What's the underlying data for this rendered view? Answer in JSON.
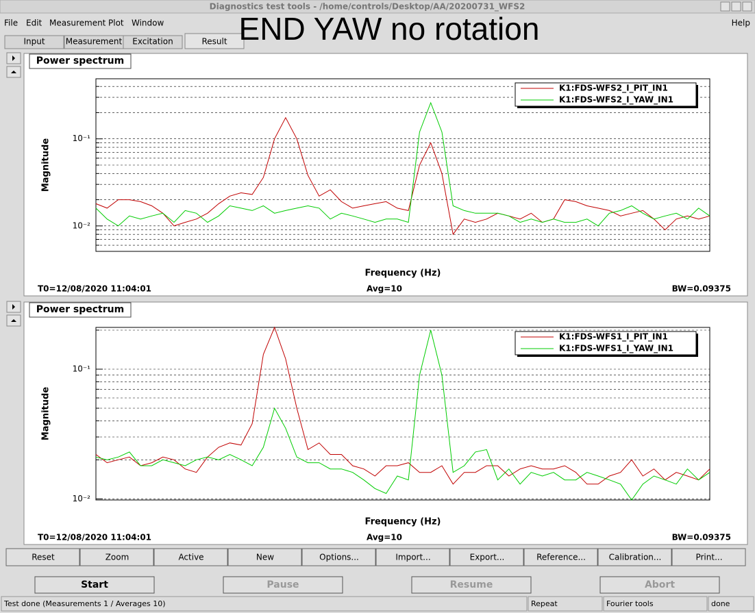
{
  "window": {
    "title": "Diagnostics test tools - /home/controls/Desktop/AA/20200731_WFS2",
    "menu": [
      "File",
      "Edit",
      "Measurement",
      "Plot",
      "Window"
    ],
    "help": "Help"
  },
  "overlay": "END YAW no rotation",
  "tabs": [
    "Input",
    "Measurement",
    "Excitation",
    "Result"
  ],
  "chart_data": [
    {
      "type": "line",
      "title": "Power spectrum",
      "ylabel": "Magnitude",
      "xlabel": "Frequency (Hz)",
      "log_y": true,
      "ylim": [
        0.0051,
        0.49
      ],
      "yticks": [
        {
          "value": 0.01,
          "label": "10⁻²"
        },
        {
          "value": 0.1,
          "label": "10⁻¹"
        }
      ],
      "minor_yticks": [
        0.006,
        0.007,
        0.008,
        0.009,
        0.02,
        0.03,
        0.04,
        0.05,
        0.06,
        0.07,
        0.08,
        0.09,
        0.2,
        0.3,
        0.4
      ],
      "grid": true,
      "legend": "upper right",
      "series": [
        {
          "name": "K1:FDS-WFS2_I_PIT_IN1",
          "color": "#c00000",
          "values": [
            0.018,
            0.016,
            0.02,
            0.02,
            0.019,
            0.017,
            0.014,
            0.01,
            0.011,
            0.012,
            0.014,
            0.018,
            0.022,
            0.024,
            0.023,
            0.036,
            0.1,
            0.175,
            0.1,
            0.038,
            0.022,
            0.026,
            0.019,
            0.016,
            0.017,
            0.018,
            0.019,
            0.016,
            0.015,
            0.05,
            0.09,
            0.04,
            0.008,
            0.012,
            0.011,
            0.012,
            0.014,
            0.013,
            0.012,
            0.014,
            0.011,
            0.012,
            0.02,
            0.019,
            0.017,
            0.016,
            0.015,
            0.013,
            0.014,
            0.015,
            0.012,
            0.009,
            0.012,
            0.013,
            0.012,
            0.013
          ]
        },
        {
          "name": "K1:FDS-WFS2_I_YAW_IN1",
          "color": "#00cc00",
          "values": [
            0.016,
            0.012,
            0.01,
            0.013,
            0.012,
            0.013,
            0.014,
            0.011,
            0.015,
            0.014,
            0.011,
            0.013,
            0.017,
            0.016,
            0.015,
            0.017,
            0.014,
            0.015,
            0.016,
            0.017,
            0.016,
            0.012,
            0.014,
            0.013,
            0.012,
            0.011,
            0.012,
            0.012,
            0.011,
            0.12,
            0.26,
            0.12,
            0.017,
            0.015,
            0.014,
            0.014,
            0.014,
            0.013,
            0.011,
            0.012,
            0.011,
            0.012,
            0.011,
            0.011,
            0.012,
            0.01,
            0.014,
            0.015,
            0.017,
            0.014,
            0.012,
            0.013,
            0.014,
            0.012,
            0.016,
            0.013
          ]
        }
      ],
      "footer_left": "T0=12/08/2020 11:04:01",
      "footer_center": "Avg=10",
      "footer_right": "BW=0.09375"
    },
    {
      "type": "line",
      "title": "Power spectrum",
      "ylabel": "Magnitude",
      "xlabel": "Frequency (Hz)",
      "log_y": true,
      "ylim": [
        0.0098,
        0.21
      ],
      "yticks": [
        {
          "value": 0.01,
          "label": "10⁻²"
        },
        {
          "value": 0.1,
          "label": "10⁻¹"
        }
      ],
      "minor_yticks": [
        0.02,
        0.03,
        0.04,
        0.05,
        0.06,
        0.07,
        0.08,
        0.09,
        0.2
      ],
      "grid": true,
      "legend": "upper right",
      "series": [
        {
          "name": "K1:FDS-WFS1_I_PIT_IN1",
          "color": "#c00000",
          "values": [
            0.022,
            0.019,
            0.02,
            0.021,
            0.018,
            0.019,
            0.021,
            0.02,
            0.017,
            0.016,
            0.021,
            0.025,
            0.027,
            0.026,
            0.038,
            0.13,
            0.21,
            0.12,
            0.05,
            0.024,
            0.027,
            0.022,
            0.022,
            0.018,
            0.017,
            0.015,
            0.018,
            0.018,
            0.019,
            0.016,
            0.016,
            0.018,
            0.013,
            0.016,
            0.016,
            0.018,
            0.018,
            0.015,
            0.017,
            0.018,
            0.017,
            0.017,
            0.018,
            0.016,
            0.013,
            0.013,
            0.015,
            0.016,
            0.02,
            0.015,
            0.017,
            0.014,
            0.016,
            0.015,
            0.014,
            0.017
          ]
        },
        {
          "name": "K1:FDS-WFS1_I_YAW_IN1",
          "color": "#00cc00",
          "values": [
            0.021,
            0.02,
            0.021,
            0.023,
            0.018,
            0.018,
            0.02,
            0.019,
            0.018,
            0.02,
            0.021,
            0.02,
            0.022,
            0.02,
            0.018,
            0.025,
            0.05,
            0.035,
            0.021,
            0.019,
            0.019,
            0.017,
            0.017,
            0.016,
            0.014,
            0.012,
            0.011,
            0.015,
            0.014,
            0.09,
            0.2,
            0.09,
            0.016,
            0.018,
            0.023,
            0.024,
            0.014,
            0.017,
            0.013,
            0.016,
            0.015,
            0.016,
            0.014,
            0.014,
            0.016,
            0.015,
            0.014,
            0.013,
            0.0098,
            0.013,
            0.015,
            0.014,
            0.013,
            0.017,
            0.014,
            0.016
          ]
        }
      ],
      "footer_left": "T0=12/08/2020 11:04:01",
      "footer_center": "Avg=10",
      "footer_right": "BW=0.09375"
    }
  ],
  "buttons": [
    "Reset",
    "Zoom",
    "Active",
    "New",
    "Options...",
    "Import...",
    "Export...",
    "Reference...",
    "Calibration...",
    "Print..."
  ],
  "controls": [
    "Start",
    "Pause",
    "Resume",
    "Abort"
  ],
  "status": [
    "Test done (Measurements 1 / Averages 10)",
    "Repeat",
    "Fourier tools",
    "done"
  ]
}
